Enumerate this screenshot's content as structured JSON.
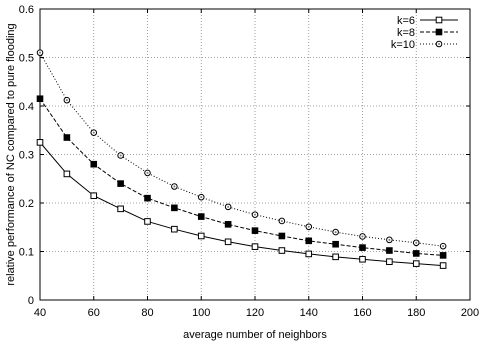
{
  "chart_data": {
    "type": "line",
    "title": "",
    "xlabel": "average number of neighbors",
    "ylabel": "relative performance of NC compared to pure flooding",
    "xlim": [
      40,
      200
    ],
    "ylim": [
      0,
      0.6
    ],
    "xticks": [
      40,
      60,
      80,
      100,
      120,
      140,
      160,
      180,
      200
    ],
    "yticks": [
      0,
      0.1,
      0.2,
      0.3,
      0.4,
      0.5,
      0.6
    ],
    "grid": true,
    "legend_position": "top-right",
    "x": [
      40,
      50,
      60,
      70,
      80,
      90,
      100,
      110,
      120,
      130,
      140,
      150,
      160,
      170,
      180,
      190
    ],
    "series": [
      {
        "name": "k=6",
        "line_style": "solid",
        "marker": "open-square",
        "color": "#000000",
        "values": [
          0.325,
          0.26,
          0.215,
          0.188,
          0.162,
          0.146,
          0.132,
          0.12,
          0.11,
          0.102,
          0.095,
          0.089,
          0.084,
          0.079,
          0.075,
          0.071
        ]
      },
      {
        "name": "k=8",
        "line_style": "dashed",
        "marker": "filled-square",
        "color": "#000000",
        "values": [
          0.415,
          0.335,
          0.28,
          0.24,
          0.21,
          0.19,
          0.172,
          0.156,
          0.143,
          0.132,
          0.122,
          0.115,
          0.108,
          0.102,
          0.096,
          0.092
        ]
      },
      {
        "name": "k=10",
        "line_style": "dotted",
        "marker": "open-circle",
        "color": "#000000",
        "values": [
          0.51,
          0.412,
          0.345,
          0.298,
          0.262,
          0.234,
          0.212,
          0.192,
          0.176,
          0.163,
          0.151,
          0.14,
          0.131,
          0.124,
          0.118,
          0.111
        ]
      }
    ]
  }
}
